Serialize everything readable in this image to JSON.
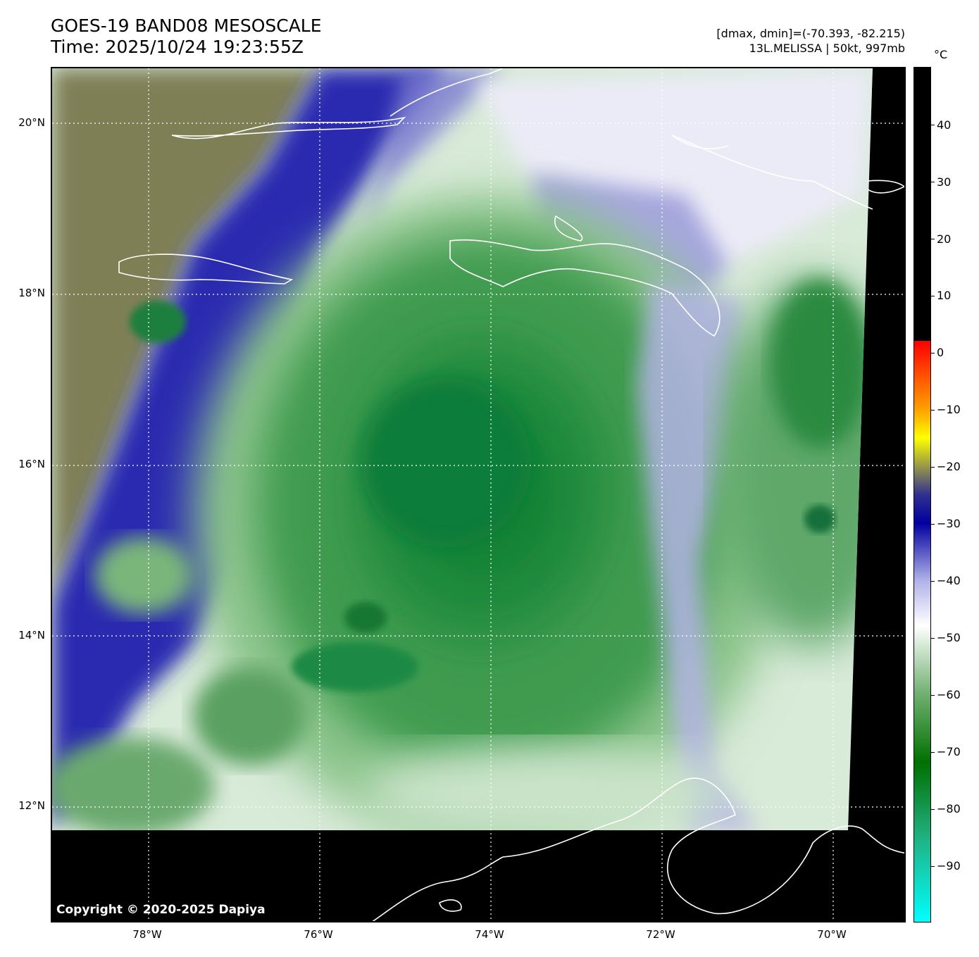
{
  "header": {
    "title": "GOES-19 BAND08 MESOSCALE",
    "time": "Time: 2025/10/24 19:23:55Z",
    "range": "[dmax, dmin]=(-70.393, -82.215)",
    "storm": "13L.MELISSA | 50kt, 997mb"
  },
  "map": {
    "copyright": "Copyright © 2020-2025 Dapiya",
    "lat_labels": [
      "20°N",
      "18°N",
      "16°N",
      "14°N",
      "12°N"
    ],
    "lon_labels": [
      "78°W",
      "76°W",
      "74°W",
      "72°W",
      "70°W"
    ],
    "grid_style": "dotted white",
    "coastline_color": "#ffffff"
  },
  "colorbar": {
    "unit": "°C",
    "ticks": [
      "40",
      "30",
      "20",
      "10",
      "0",
      "−10",
      "−20",
      "−30",
      "−40",
      "−50",
      "−60",
      "−70",
      "−80",
      "−90"
    ],
    "colors": {
      "warm": "#000000",
      "zero": "#ff0000",
      "minus10": "#ffa000",
      "minus15": "#ffff00",
      "minus25": "#303090",
      "minus30": "#0000a0",
      "minus40": "#b0b0e8",
      "minus48": "#ffffff",
      "minus60": "#70b070",
      "minus72": "#007000",
      "minus85": "#20b080",
      "minus100": "#00ffff"
    }
  }
}
